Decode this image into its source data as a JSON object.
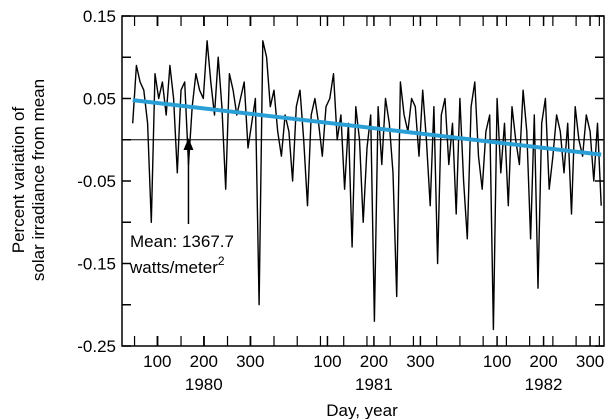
{
  "chart_data": {
    "type": "line",
    "title": "",
    "xlabel": "Day, year",
    "ylabel_line1": "Percent variation of",
    "ylabel_line2": "solar irradiance from mean",
    "ylim": [
      -0.25,
      0.15
    ],
    "y_ticks": [
      0.15,
      0.05,
      -0.05,
      -0.15,
      -0.25
    ],
    "y_tick_labels": [
      "0.15",
      "0.05",
      "-0.05",
      "-0.15",
      "-0.25"
    ],
    "x_ticks": [
      {
        "label": "100",
        "date": "1980-04-09"
      },
      {
        "label": "200",
        "date": "1980-07-18"
      },
      {
        "label": "300",
        "date": "1980-10-26"
      },
      {
        "label": "100",
        "date": "1981-04-10"
      },
      {
        "label": "200",
        "date": "1981-07-19"
      },
      {
        "label": "300",
        "date": "1981-10-27"
      },
      {
        "label": "100",
        "date": "1982-04-10"
      },
      {
        "label": "200",
        "date": "1982-07-19"
      },
      {
        "label": "300",
        "date": "1982-10-27"
      }
    ],
    "year_labels": [
      {
        "label": "1980",
        "date": "1980-07-18"
      },
      {
        "label": "1981",
        "date": "1981-07-19"
      },
      {
        "label": "1982",
        "date": "1982-07-19"
      }
    ],
    "grid": false,
    "legend": "none",
    "reference_line": {
      "y": 0
    },
    "annotation": {
      "line1": "Mean: 1367.7",
      "line2_text": "watts/meter",
      "line2_sup": "2",
      "arrow_date": "1980-06-15"
    },
    "colors": {
      "series": "#000000",
      "trend": "#2a9fd6"
    },
    "trend": {
      "x": [
        "1980-02-16",
        "1982-11-20"
      ],
      "y": [
        0.048,
        -0.018
      ]
    },
    "series": [
      {
        "x": [
          "1980-02-16",
          "1980-02-24",
          "1980-03-03",
          "1980-03-11",
          "1980-03-19",
          "1980-03-27",
          "1980-04-04",
          "1980-04-12",
          "1980-04-20",
          "1980-04-28",
          "1980-05-06",
          "1980-05-14",
          "1980-05-22",
          "1980-05-30",
          "1980-06-07",
          "1980-06-15",
          "1980-06-23",
          "1980-07-01",
          "1980-07-09",
          "1980-07-17",
          "1980-07-25",
          "1980-08-02",
          "1980-08-10",
          "1980-08-18",
          "1980-08-26",
          "1980-09-03",
          "1980-09-11",
          "1980-09-19",
          "1980-09-27",
          "1980-10-05",
          "1980-10-13",
          "1980-10-21",
          "1980-10-29",
          "1980-11-06",
          "1980-11-14",
          "1980-11-22",
          "1980-11-30",
          "1980-12-08",
          "1980-12-16",
          "1980-12-24",
          "1981-01-01",
          "1981-01-09",
          "1981-01-17",
          "1981-01-25",
          "1981-02-02",
          "1981-02-10",
          "1981-02-18",
          "1981-02-26",
          "1981-03-06",
          "1981-03-14",
          "1981-03-22",
          "1981-03-30",
          "1981-04-07",
          "1981-04-15",
          "1981-04-23",
          "1981-05-01",
          "1981-05-09",
          "1981-05-17",
          "1981-05-25",
          "1981-06-02",
          "1981-06-10",
          "1981-06-18",
          "1981-06-26",
          "1981-07-04",
          "1981-07-12",
          "1981-07-20",
          "1981-07-28",
          "1981-08-05",
          "1981-08-13",
          "1981-08-21",
          "1981-08-29",
          "1981-09-06",
          "1981-09-14",
          "1981-09-22",
          "1981-09-30",
          "1981-10-08",
          "1981-10-16",
          "1981-10-24",
          "1981-11-01",
          "1981-11-09",
          "1981-11-17",
          "1981-11-25",
          "1981-12-03",
          "1981-12-11",
          "1981-12-19",
          "1981-12-27",
          "1982-01-04",
          "1982-01-12",
          "1982-01-20",
          "1982-01-28",
          "1982-02-05",
          "1982-02-13",
          "1982-02-21",
          "1982-03-01",
          "1982-03-09",
          "1982-03-17",
          "1982-03-25",
          "1982-04-02",
          "1982-04-10",
          "1982-04-18",
          "1982-04-26",
          "1982-05-04",
          "1982-05-12",
          "1982-05-20",
          "1982-05-28",
          "1982-06-05",
          "1982-06-13",
          "1982-06-21",
          "1982-06-29",
          "1982-07-07",
          "1982-07-15",
          "1982-07-23",
          "1982-07-31",
          "1982-08-08",
          "1982-08-16",
          "1982-08-24",
          "1982-09-01",
          "1982-09-09",
          "1982-09-17",
          "1982-09-25",
          "1982-10-03",
          "1982-10-11",
          "1982-10-19",
          "1982-10-27",
          "1982-11-04",
          "1982-11-12",
          "1982-11-20"
        ],
        "values": [
          0.02,
          0.09,
          0.07,
          0.06,
          0.02,
          -0.1,
          0.08,
          0.05,
          0.07,
          0.03,
          0.09,
          0.05,
          -0.04,
          0.06,
          0.07,
          -0.03,
          0.04,
          0.08,
          0.06,
          0.05,
          0.12,
          0.07,
          0.03,
          0.1,
          0.04,
          -0.06,
          0.08,
          0.06,
          0.03,
          0.05,
          0.07,
          -0.01,
          0.02,
          0.05,
          -0.2,
          0.12,
          0.1,
          0.04,
          0.06,
          0.01,
          -0.02,
          0.03,
          0.01,
          -0.05,
          0.04,
          0.06,
          0.0,
          -0.08,
          0.03,
          0.05,
          0.02,
          -0.02,
          0.04,
          0.05,
          0.08,
          0.0,
          0.03,
          -0.06,
          0.02,
          -0.13,
          0.04,
          0.0,
          -0.1,
          -0.01,
          0.03,
          -0.22,
          0.04,
          -0.03,
          0.05,
          0.02,
          -0.04,
          -0.19,
          0.07,
          0.03,
          0.01,
          0.05,
          0.04,
          -0.02,
          0.06,
          0.0,
          -0.08,
          0.04,
          -0.15,
          0.03,
          0.05,
          -0.03,
          0.02,
          -0.09,
          0.05,
          -0.05,
          -0.12,
          0.04,
          0.07,
          -0.02,
          -0.06,
          0.01,
          0.03,
          -0.23,
          0.05,
          -0.04,
          0.02,
          -0.08,
          0.04,
          0.0,
          -0.03,
          0.06,
          0.01,
          -0.12,
          0.03,
          -0.18,
          0.02,
          0.05,
          -0.06,
          -0.02,
          0.03,
          0.01,
          -0.04,
          0.02,
          -0.09,
          0.04,
          0.0,
          -0.02,
          0.03,
          0.01,
          -0.05,
          0.02,
          -0.08
        ]
      }
    ]
  }
}
